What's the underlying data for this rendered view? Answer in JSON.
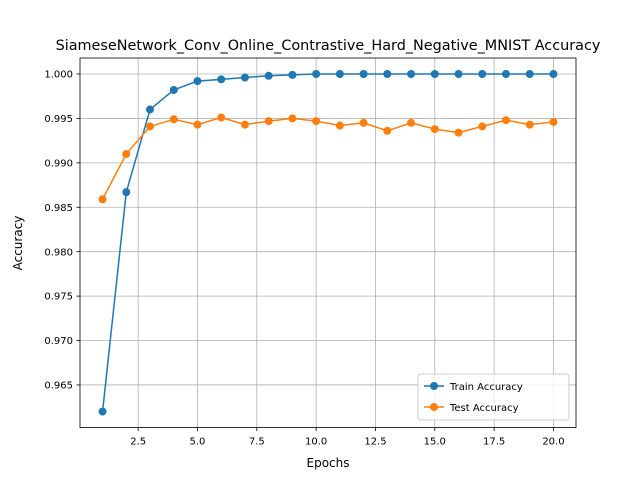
{
  "colors": {
    "train": "#1f77b4",
    "test": "#ff7f0e",
    "grid": "#b0b0b0",
    "legend_border": "#cccccc"
  },
  "chart_data": {
    "type": "line",
    "title": "SiameseNetwork_Conv_Online_Contrastive_Hard_Negative_MNIST Accuracy",
    "xlabel": "Epochs",
    "ylabel": "Accuracy",
    "xlim": [
      0.05,
      20.95
    ],
    "ylim": [
      0.9602,
      1.0018
    ],
    "x_ticks": [
      2.5,
      5.0,
      7.5,
      10.0,
      12.5,
      15.0,
      17.5,
      20.0
    ],
    "x_tick_labels": [
      "2.5",
      "5.0",
      "7.5",
      "10.0",
      "12.5",
      "15.0",
      "17.5",
      "20.0"
    ],
    "y_ticks": [
      0.965,
      0.97,
      0.975,
      0.98,
      0.985,
      0.99,
      0.995,
      1.0
    ],
    "y_tick_labels": [
      "0.965",
      "0.970",
      "0.975",
      "0.980",
      "0.985",
      "0.990",
      "0.995",
      "1.000"
    ],
    "grid": true,
    "legend_position": "lower-right",
    "x": [
      1,
      2,
      3,
      4,
      5,
      6,
      7,
      8,
      9,
      10,
      11,
      12,
      13,
      14,
      15,
      16,
      17,
      18,
      19,
      20
    ],
    "series": [
      {
        "name": "Train Accuracy",
        "color_key": "train",
        "values": [
          0.962,
          0.9867,
          0.996,
          0.9982,
          0.9992,
          0.9994,
          0.9996,
          0.9998,
          0.9999,
          1.0,
          1.0,
          1.0,
          1.0,
          1.0,
          1.0,
          1.0,
          1.0,
          1.0,
          1.0,
          1.0
        ]
      },
      {
        "name": "Test Accuracy",
        "color_key": "test",
        "values": [
          0.9859,
          0.991,
          0.9941,
          0.9949,
          0.9943,
          0.9951,
          0.9943,
          0.9947,
          0.995,
          0.9947,
          0.9942,
          0.9945,
          0.9936,
          0.9945,
          0.9938,
          0.9934,
          0.9941,
          0.9948,
          0.9943,
          0.9946
        ]
      }
    ]
  }
}
